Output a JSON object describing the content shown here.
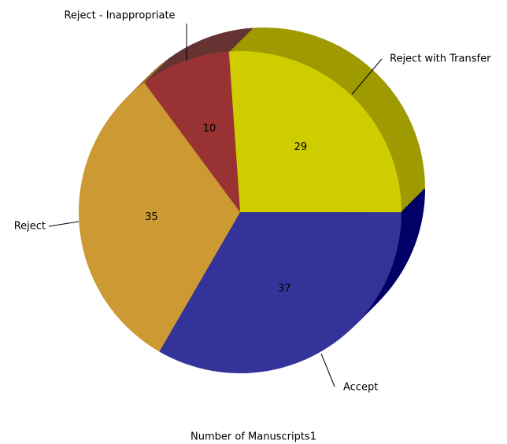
{
  "chart_data": {
    "type": "pie",
    "title": "Number of Manuscripts1",
    "categories": [
      "Reject with Transfer",
      "Accept",
      "Reject",
      "Reject - Inappropriate"
    ],
    "values": [
      29,
      37,
      35,
      10
    ],
    "colors": [
      "#cfcc00",
      "#333399",
      "#cc9933",
      "#993333"
    ],
    "depth_colors": [
      "#9e9a00",
      "#000066",
      "#996f22",
      "#663333"
    ]
  }
}
